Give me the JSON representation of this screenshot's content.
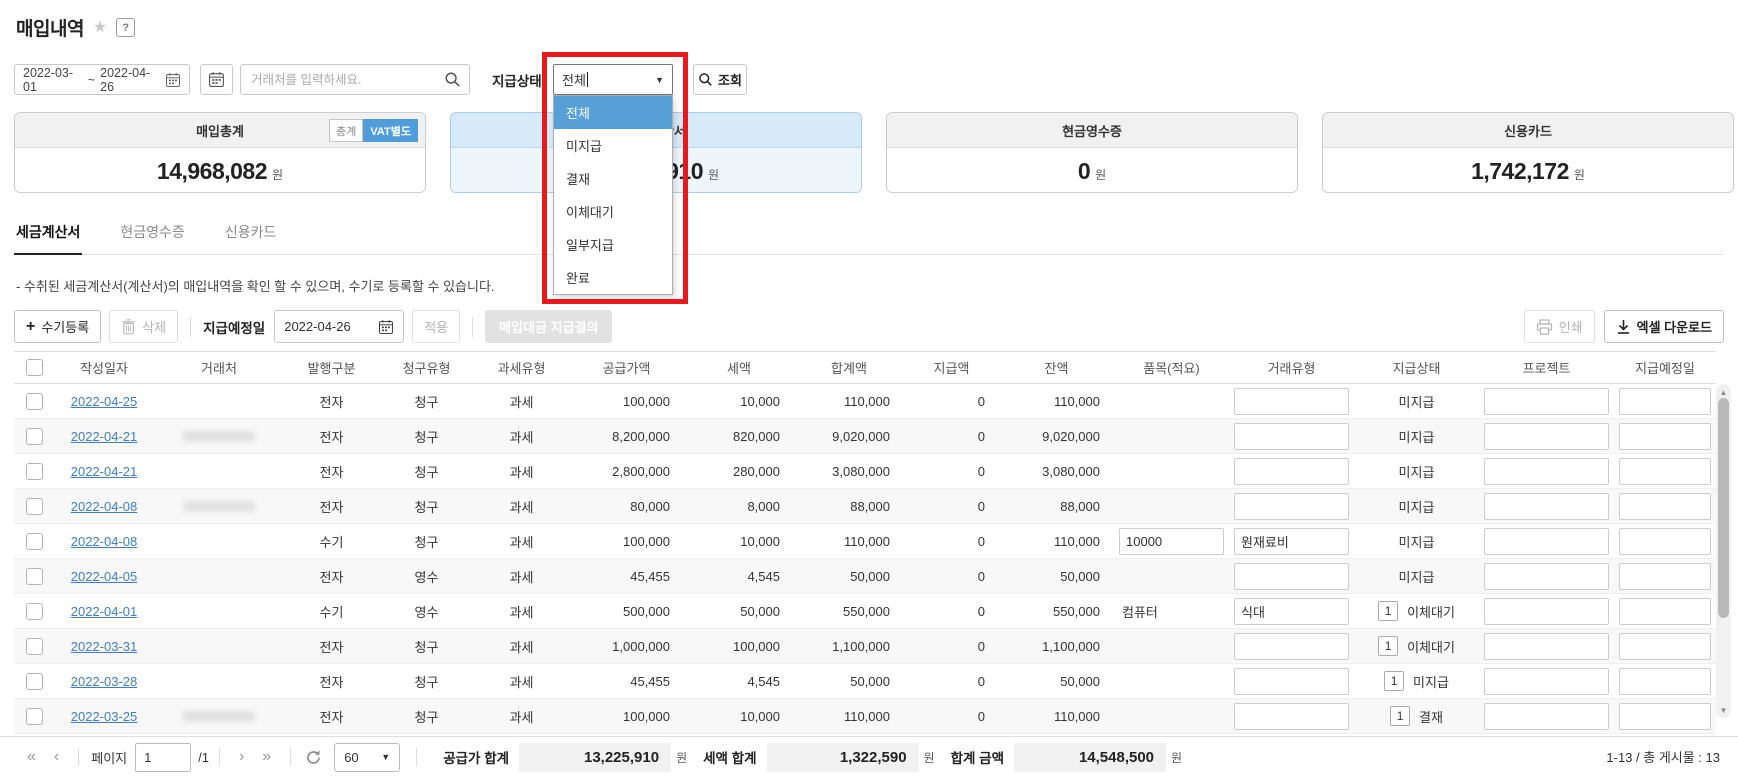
{
  "page": {
    "title": "매입내역"
  },
  "icons": {
    "star": "★",
    "help": "?",
    "arrow_down": "▼",
    "plus": "+",
    "tilde": "~",
    "page_first": "«",
    "page_prev": "‹",
    "page_next": "›",
    "page_last": "»",
    "scroll_up": "▲",
    "scroll_down": "▼"
  },
  "colors": {
    "accent_blue": "#4f9ddb",
    "link_blue": "#3f7fbe",
    "annotation_red": "#e8191d",
    "dropdown_selected_bg": "#57a0d8",
    "card_highlight_border": "#a9cde9"
  },
  "filters": {
    "date_start": "2022-03-01",
    "date_separator": "~",
    "date_end": "2022-04-26",
    "vendor_placeholder": "거래처를 입력하세요.",
    "status_label": "지급상태",
    "status_value": "전체",
    "status_options": [
      "전체",
      "미지급",
      "결재",
      "이체대기",
      "일부지급",
      "완료"
    ],
    "status_selected_index": 0,
    "search_button": "조회"
  },
  "summary_cards": [
    {
      "title": "매입총계",
      "value": "14,968,082",
      "unit": "원",
      "highlight": false,
      "badges": [
        {
          "label": "총계",
          "active": false
        },
        {
          "label": "VAT별도",
          "active": true
        }
      ]
    },
    {
      "title": "세금계산서",
      "value": "13,225,910",
      "unit": "원",
      "highlight": true,
      "badges": []
    },
    {
      "title": "현금영수증",
      "value": "0",
      "unit": "원",
      "highlight": false,
      "badges": []
    },
    {
      "title": "신용카드",
      "value": "1,742,172",
      "unit": "원",
      "highlight": false,
      "badges": []
    }
  ],
  "tabs": [
    {
      "label": "세금계산서",
      "active": true
    },
    {
      "label": "현금영수증",
      "active": false
    },
    {
      "label": "신용카드",
      "active": false
    }
  ],
  "description": "- 수취된 세금계산서(계산서)의 매입내역을 확인 할 수 있으며, 수기로 등록할 수 있습니다.",
  "toolbar": {
    "add": "수기등록",
    "delete": "삭제",
    "due_label": "지급예정일",
    "due_date": "2022-04-26",
    "apply": "적용",
    "payment_request": "매입대금 지급결의",
    "print": "인쇄",
    "excel": "엑셀 다운로드"
  },
  "table": {
    "columns": [
      "작성일자",
      "거래처",
      "발행구분",
      "청구유형",
      "과세유형",
      "공급가액",
      "세액",
      "합계액",
      "지급액",
      "잔액",
      "품목(적요)",
      "거래유형",
      "지급상태",
      "프로젝트",
      "지급예정일"
    ],
    "rows": [
      {
        "date": "2022-04-25",
        "vendor": "",
        "vendor_redacted": false,
        "issue_type": "전자",
        "bill_type": "청구",
        "tax_type": "과세",
        "supply": "100,000",
        "tax": "10,000",
        "total": "110,000",
        "paid": "0",
        "balance": "110,000",
        "item": "",
        "item_is_input": false,
        "trade_type": "",
        "count": "",
        "status": "미지급",
        "project": "",
        "due_date": ""
      },
      {
        "date": "2022-04-21",
        "vendor": "",
        "vendor_redacted": true,
        "issue_type": "전자",
        "bill_type": "청구",
        "tax_type": "과세",
        "supply": "8,200,000",
        "tax": "820,000",
        "total": "9,020,000",
        "paid": "0",
        "balance": "9,020,000",
        "item": "",
        "item_is_input": false,
        "trade_type": "",
        "count": "",
        "status": "미지급",
        "project": "",
        "due_date": ""
      },
      {
        "date": "2022-04-21",
        "vendor": "",
        "vendor_redacted": false,
        "issue_type": "전자",
        "bill_type": "청구",
        "tax_type": "과세",
        "supply": "2,800,000",
        "tax": "280,000",
        "total": "3,080,000",
        "paid": "0",
        "balance": "3,080,000",
        "item": "",
        "item_is_input": false,
        "trade_type": "",
        "count": "",
        "status": "미지급",
        "project": "",
        "due_date": ""
      },
      {
        "date": "2022-04-08",
        "vendor": "",
        "vendor_redacted": true,
        "issue_type": "전자",
        "bill_type": "청구",
        "tax_type": "과세",
        "supply": "80,000",
        "tax": "8,000",
        "total": "88,000",
        "paid": "0",
        "balance": "88,000",
        "item": "",
        "item_is_input": false,
        "trade_type": "",
        "count": "",
        "status": "미지급",
        "project": "",
        "due_date": ""
      },
      {
        "date": "2022-04-08",
        "vendor": "",
        "vendor_redacted": false,
        "issue_type": "수기",
        "bill_type": "청구",
        "tax_type": "과세",
        "supply": "100,000",
        "tax": "10,000",
        "total": "110,000",
        "paid": "0",
        "balance": "110,000",
        "item": "10000",
        "item_is_input": true,
        "trade_type": "원재료비",
        "count": "",
        "status": "미지급",
        "project": "",
        "due_date": ""
      },
      {
        "date": "2022-04-05",
        "vendor": "",
        "vendor_redacted": false,
        "issue_type": "전자",
        "bill_type": "영수",
        "tax_type": "과세",
        "supply": "45,455",
        "tax": "4,545",
        "total": "50,000",
        "paid": "0",
        "balance": "50,000",
        "item": "",
        "item_is_input": false,
        "trade_type": "",
        "count": "",
        "status": "미지급",
        "project": "",
        "due_date": ""
      },
      {
        "date": "2022-04-01",
        "vendor": "",
        "vendor_redacted": false,
        "issue_type": "수기",
        "bill_type": "영수",
        "tax_type": "과세",
        "supply": "500,000",
        "tax": "50,000",
        "total": "550,000",
        "paid": "0",
        "balance": "550,000",
        "item": "컴퓨터",
        "item_is_input": false,
        "trade_type": "식대",
        "count": "1",
        "status": "이체대기",
        "project": "",
        "due_date": ""
      },
      {
        "date": "2022-03-31",
        "vendor": "",
        "vendor_redacted": false,
        "issue_type": "전자",
        "bill_type": "청구",
        "tax_type": "과세",
        "supply": "1,000,000",
        "tax": "100,000",
        "total": "1,100,000",
        "paid": "0",
        "balance": "1,100,000",
        "item": "",
        "item_is_input": false,
        "trade_type": "",
        "count": "1",
        "status": "이체대기",
        "project": "",
        "due_date": ""
      },
      {
        "date": "2022-03-28",
        "vendor": "",
        "vendor_redacted": false,
        "issue_type": "전자",
        "bill_type": "청구",
        "tax_type": "과세",
        "supply": "45,455",
        "tax": "4,545",
        "total": "50,000",
        "paid": "0",
        "balance": "50,000",
        "item": "",
        "item_is_input": false,
        "trade_type": "",
        "count": "1",
        "status": "미지급",
        "project": "",
        "due_date": ""
      },
      {
        "date": "2022-03-25",
        "vendor": "",
        "vendor_redacted": true,
        "issue_type": "전자",
        "bill_type": "청구",
        "tax_type": "과세",
        "supply": "100,000",
        "tax": "10,000",
        "total": "110,000",
        "paid": "0",
        "balance": "110,000",
        "item": "",
        "item_is_input": false,
        "trade_type": "",
        "count": "1",
        "status": "결재",
        "project": "",
        "due_date": ""
      }
    ]
  },
  "footer": {
    "page_label": "페이지",
    "page_value": "1",
    "page_total": "/1",
    "page_size": "60",
    "supply_total_label": "공급가 합계",
    "supply_total": "13,225,910",
    "tax_total_label": "세액 합계",
    "tax_total": "1,322,590",
    "grand_total_label": "합계 금액",
    "grand_total": "14,548,500",
    "unit": "원",
    "range_info": "1-13 / 총 게시물 : 13"
  }
}
